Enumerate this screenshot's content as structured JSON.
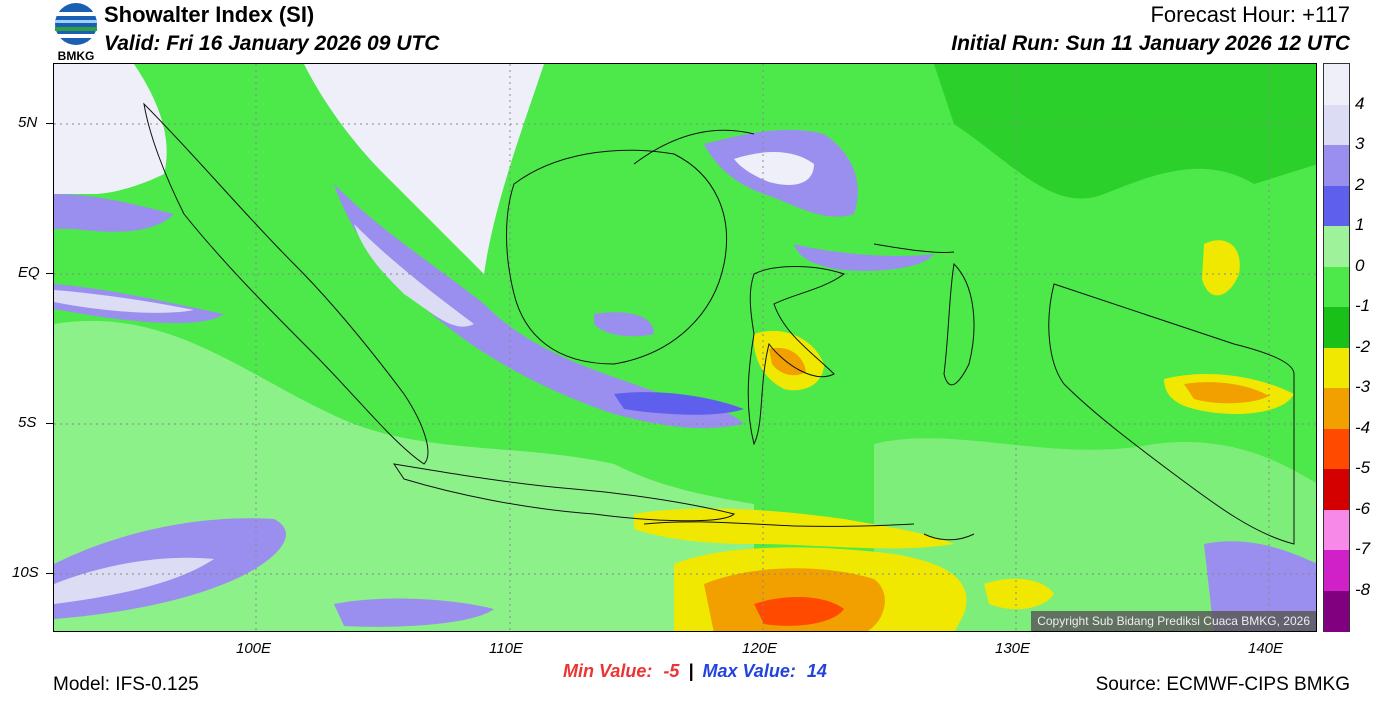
{
  "header": {
    "logo_text": "BMKG",
    "title": "Showalter Index (SI)",
    "valid": "Valid: Fri 16 January 2026 09 UTC",
    "forecast_hour": "Forecast Hour: +117",
    "initial_run": "Initial Run: Sun 11 January 2026 12 UTC"
  },
  "map": {
    "lat_labels": [
      "5N",
      "EQ",
      "5S",
      "10S"
    ],
    "lon_labels": [
      "100E",
      "110E",
      "120E",
      "130E",
      "140E"
    ],
    "copyright": "Copyright Sub Bidang Prediksi Cuaca BMKG, 2026"
  },
  "colorbar": {
    "labels": [
      "4",
      "3",
      "2",
      "1",
      "0",
      "-1",
      "-2",
      "-3",
      "-4",
      "-5",
      "-6",
      "-7",
      "-8"
    ],
    "colors": [
      "#efeffa",
      "#dcdcf5",
      "#9a8fef",
      "#5f5fee",
      "#9ef29a",
      "#4de84a",
      "#18c018",
      "#f0e800",
      "#f2a000",
      "#ff4a00",
      "#d40000",
      "#f78ae8",
      "#d020c8",
      "#800080"
    ]
  },
  "footer": {
    "model": "Model: IFS-0.125",
    "min_label": "Min Value:",
    "min_value": "-5",
    "separator": "|",
    "max_label": "Max Value:",
    "max_value": "14",
    "source": "Source: ECMWF-CIPS BMKG"
  }
}
